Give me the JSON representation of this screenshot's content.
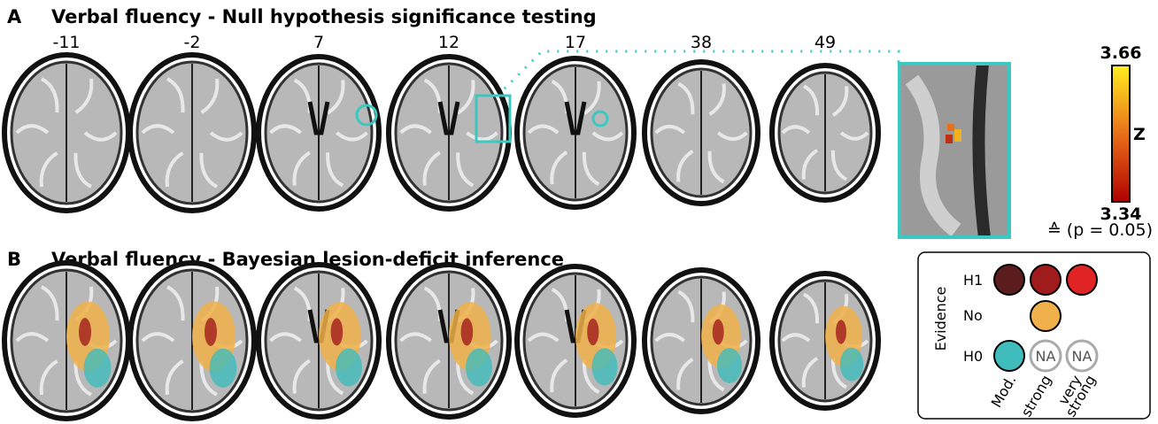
{
  "panel_a": {
    "letter": "A",
    "title": "Verbal fluency - Null hypothesis significance testing",
    "slices": [
      "-11",
      "-2",
      "7",
      "12",
      "17",
      "38",
      "49"
    ]
  },
  "colorbar": {
    "max": "3.66",
    "min": "3.34",
    "label": "Z",
    "note": "≙ (p = 0.05)"
  },
  "panel_b": {
    "letter": "B",
    "title": "Verbal fluency - Bayesian lesion-deficit inference"
  },
  "legend": {
    "axis_label": "Evidence",
    "rows": [
      "H1",
      "No",
      "H0"
    ],
    "na": [
      "NA",
      "NA"
    ],
    "columns": [
      "Mod.",
      "strong"
    ],
    "column_3_lines": [
      "very",
      "strong"
    ]
  }
}
